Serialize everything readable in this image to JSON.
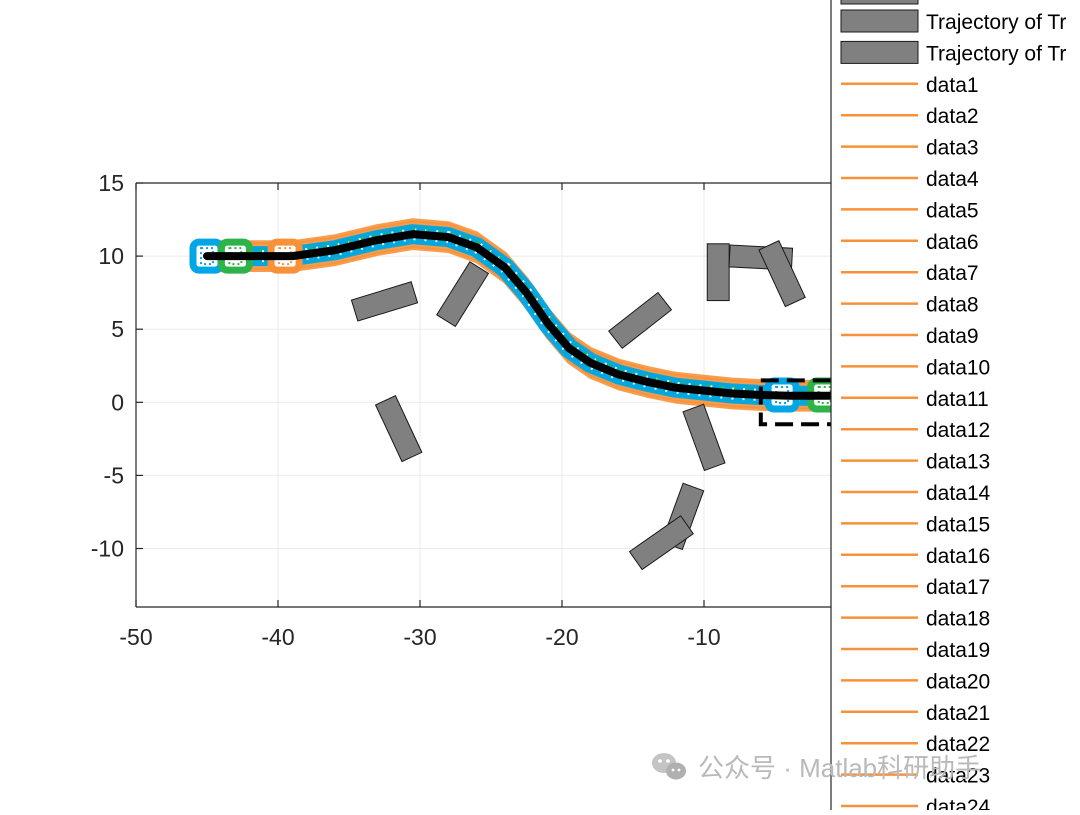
{
  "chart_data": {
    "type": "line",
    "xlim": [
      -50,
      0
    ],
    "ylim": [
      -14,
      15
    ],
    "x_ticks": [
      -50,
      -40,
      -30,
      -20,
      -10
    ],
    "y_ticks": [
      15,
      10,
      5,
      0,
      -5,
      -10
    ],
    "grid": true,
    "legend_placement": "right (clipped)",
    "reference_path": {
      "x": [
        -45,
        -42,
        -39,
        -36,
        -33,
        -30.5,
        -28,
        -26,
        -24,
        -22.5,
        -21,
        -19.5,
        -18,
        -16,
        -14,
        -12,
        -10,
        -8,
        -6,
        -4,
        -2,
        0
      ],
      "y": [
        10,
        10,
        10,
        10.4,
        11.1,
        11.5,
        11.3,
        10.6,
        9.2,
        7.5,
        5.4,
        3.7,
        2.7,
        1.9,
        1.4,
        1.0,
        0.8,
        0.6,
        0.5,
        0.45,
        0.45,
        0.45
      ]
    },
    "vehicle_markers": [
      {
        "x": -45,
        "y": 10,
        "color": "#00a6e6"
      },
      {
        "x": -43,
        "y": 10,
        "color": "#2eb34a"
      },
      {
        "x": -39.5,
        "y": 10,
        "color": "#f7923a"
      },
      {
        "x": -4.5,
        "y": 0.5,
        "color": "#00a6e6"
      },
      {
        "x": -1.5,
        "y": 0.5,
        "color": "#2eb34a"
      }
    ],
    "goal_box": {
      "x1": -6,
      "x2": 0,
      "y1": -1.5,
      "y2": 1.5
    },
    "obstacles": [
      {
        "cx": -32.5,
        "cy": 6.9,
        "len": 4.4,
        "wid": 1.5,
        "angle_deg": 17
      },
      {
        "cx": -27.0,
        "cy": 7.4,
        "len": 4.4,
        "wid": 1.5,
        "angle_deg": 58
      },
      {
        "cx": -31.5,
        "cy": -1.8,
        "len": 4.4,
        "wid": 1.5,
        "angle_deg": -65
      },
      {
        "cx": -14.5,
        "cy": 5.6,
        "len": 4.4,
        "wid": 1.5,
        "angle_deg": 38
      },
      {
        "cx": -9.0,
        "cy": 8.9,
        "len": 4.0,
        "wid": 1.5,
        "angle_deg": -90
      },
      {
        "cx": -6.0,
        "cy": 9.9,
        "len": 4.4,
        "wid": 1.5,
        "angle_deg": -3
      },
      {
        "cx": -4.5,
        "cy": 8.8,
        "len": 4.4,
        "wid": 1.5,
        "angle_deg": -65
      },
      {
        "cx": -10.0,
        "cy": -2.4,
        "len": 4.4,
        "wid": 1.5,
        "angle_deg": -70
      },
      {
        "cx": -11.5,
        "cy": -7.8,
        "len": 4.4,
        "wid": 1.5,
        "angle_deg": 70
      },
      {
        "cx": -13.0,
        "cy": -9.6,
        "len": 4.4,
        "wid": 1.5,
        "angle_deg": 35
      }
    ],
    "legend_entries": [
      {
        "label": "Trajectory of Tr",
        "kind": "patch"
      },
      {
        "label": "Trajectory of Tr",
        "kind": "patch"
      },
      {
        "label": "data1",
        "kind": "line"
      },
      {
        "label": "data2",
        "kind": "line"
      },
      {
        "label": "data3",
        "kind": "line"
      },
      {
        "label": "data4",
        "kind": "line"
      },
      {
        "label": "data5",
        "kind": "line"
      },
      {
        "label": "data6",
        "kind": "line"
      },
      {
        "label": "data7",
        "kind": "line"
      },
      {
        "label": "data8",
        "kind": "line"
      },
      {
        "label": "data9",
        "kind": "line"
      },
      {
        "label": "data10",
        "kind": "line"
      },
      {
        "label": "data11",
        "kind": "line"
      },
      {
        "label": "data12",
        "kind": "line"
      },
      {
        "label": "data13",
        "kind": "line"
      },
      {
        "label": "data14",
        "kind": "line"
      },
      {
        "label": "data15",
        "kind": "line"
      },
      {
        "label": "data16",
        "kind": "line"
      },
      {
        "label": "data17",
        "kind": "line"
      },
      {
        "label": "data18",
        "kind": "line"
      },
      {
        "label": "data19",
        "kind": "line"
      },
      {
        "label": "data20",
        "kind": "line"
      },
      {
        "label": "data21",
        "kind": "line"
      },
      {
        "label": "data22",
        "kind": "line"
      },
      {
        "label": "data23",
        "kind": "line"
      },
      {
        "label": "data24",
        "kind": "line"
      }
    ],
    "colors": {
      "orange": "#f7923a",
      "blue": "#00a6e6",
      "green": "#2eb34a",
      "path": "#000000",
      "obstacle": "#808080",
      "grid": "#ebebeb"
    }
  },
  "watermark": {
    "text": "公众号 · Matlab科研助手",
    "icon": "wechat-icon"
  }
}
